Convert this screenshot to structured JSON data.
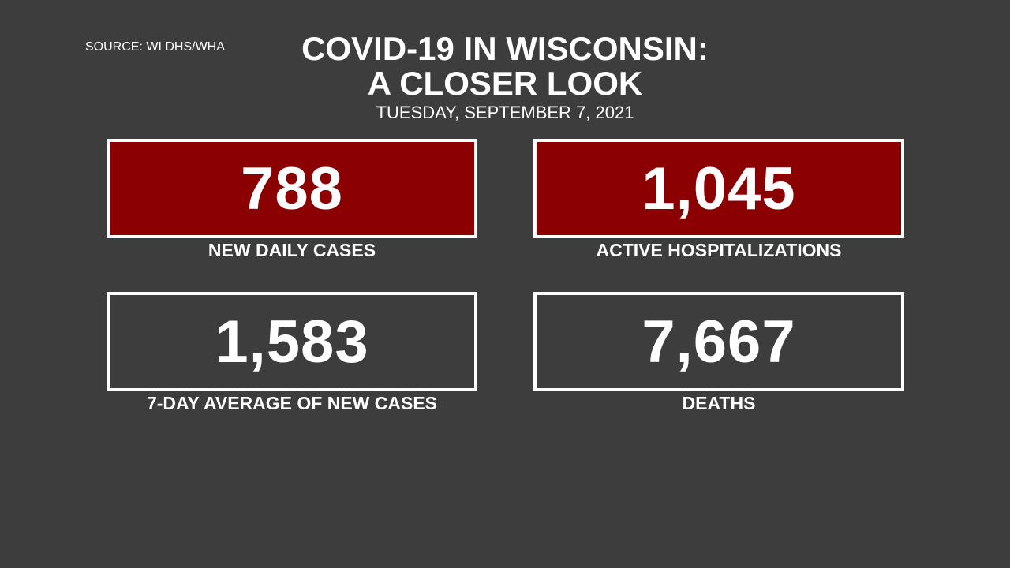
{
  "source": "SOURCE: WI DHS/WHA",
  "title_lines": [
    "COVID-19 IN WISCONSIN:",
    "A CLOSER LOOK"
  ],
  "date": "TUESDAY, SEPTEMBER 7, 2021",
  "cards": [
    {
      "value": "788",
      "label": "NEW DAILY CASES"
    },
    {
      "value": "1,045",
      "label": "ACTIVE HOSPITALIZATIONS"
    },
    {
      "value": "1,583",
      "label": "7-DAY AVERAGE OF NEW CASES"
    },
    {
      "value": "7,667",
      "label": "DEATHS"
    }
  ]
}
